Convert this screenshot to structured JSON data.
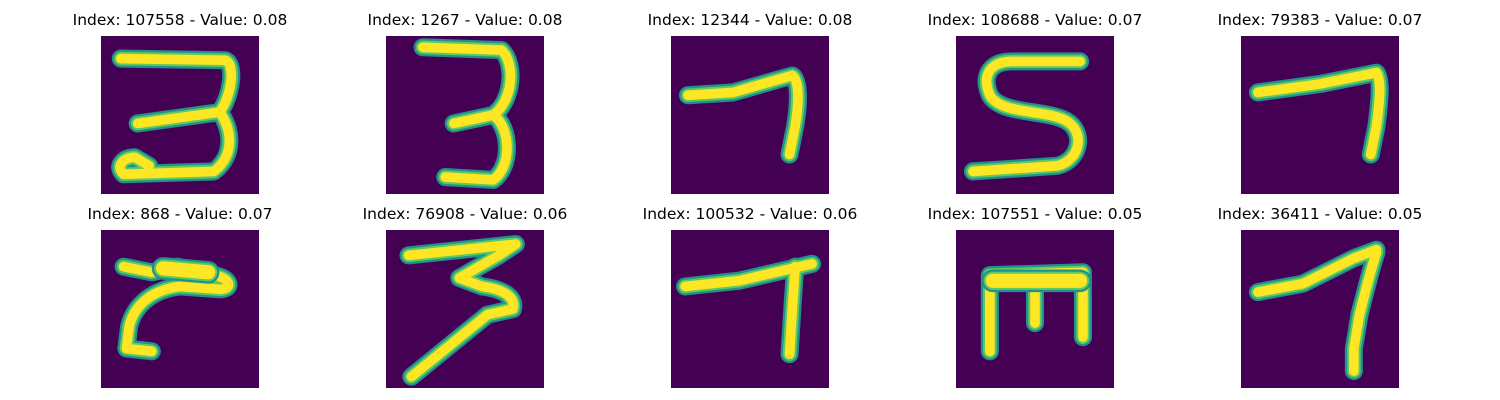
{
  "colors": {
    "background": "#440154",
    "stroke_edge": "#21918c",
    "stroke_mid": "#5ec962",
    "stroke_core": "#fde725"
  },
  "panels": [
    {
      "index": "107558",
      "value": "0.08",
      "title": "Index: 107558 - Value: 0.08",
      "glyph": "three-with-loop-tail"
    },
    {
      "index": "1267",
      "value": "0.08",
      "title": "Index: 1267 - Value: 0.08",
      "glyph": "three"
    },
    {
      "index": "12344",
      "value": "0.08",
      "title": "Index: 12344 - Value: 0.08",
      "glyph": "seven"
    },
    {
      "index": "108688",
      "value": "0.07",
      "title": "Index: 108688 - Value: 0.07",
      "glyph": "s-shape"
    },
    {
      "index": "79383",
      "value": "0.07",
      "title": "Index: 79383 - Value: 0.07",
      "glyph": "seven"
    },
    {
      "index": "868",
      "value": "0.07",
      "title": "Index: 868 - Value: 0.07",
      "glyph": "r-shape"
    },
    {
      "index": "76908",
      "value": "0.06",
      "title": "Index: 76908 - Value: 0.06",
      "glyph": "three-slanted"
    },
    {
      "index": "100532",
      "value": "0.06",
      "title": "Index: 100532 - Value: 0.06",
      "glyph": "t-seven"
    },
    {
      "index": "107551",
      "value": "0.05",
      "title": "Index: 107551 - Value: 0.05",
      "glyph": "e-shape"
    },
    {
      "index": "36411",
      "value": "0.05",
      "title": "Index: 36411 - Value: 0.05",
      "glyph": "seven-slanted"
    }
  ]
}
